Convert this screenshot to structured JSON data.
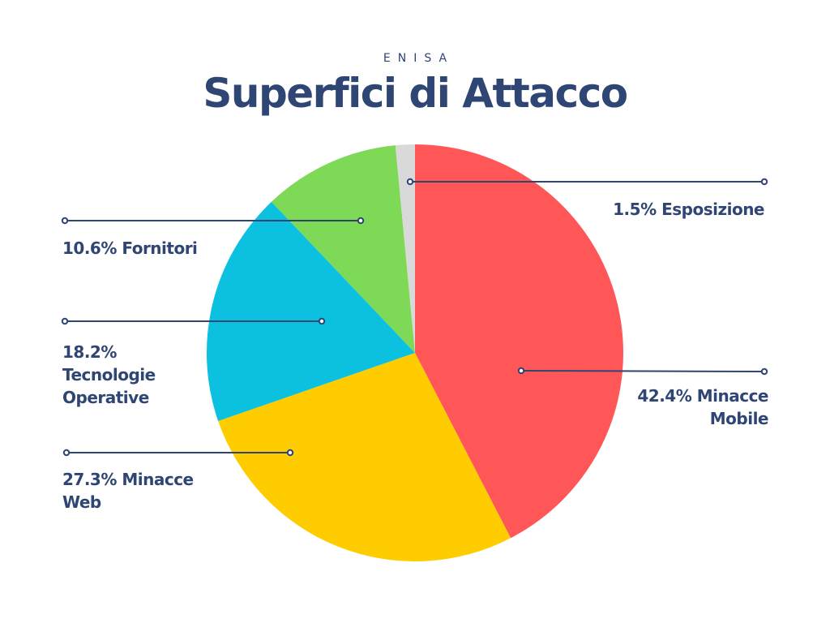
{
  "header": {
    "kicker": "ENISA",
    "title": "Superfici di Attacco"
  },
  "labels": {
    "mobile_l1": "42.4% Minacce",
    "mobile_l2": "Mobile",
    "web_l1": "27.3% Minacce",
    "web_l2": "Web",
    "ot_l1": "18.2%",
    "ot_l2": "Tecnologie",
    "ot_l3": "Operative",
    "suppliers": "10.6% Fornitori",
    "exposure": "1.5% Esposizione"
  },
  "colors": {
    "text": "#2f4574",
    "mobile": "#ff5757",
    "web": "#ffcc00",
    "ot": "#0cc0df",
    "suppliers": "#7ed957",
    "exposure": "#d9d9d9"
  },
  "chart_data": {
    "type": "pie",
    "title": "Superfici di Attacco",
    "subtitle": "ENISA",
    "start_angle": "12 o'clock, clockwise",
    "categories": [
      "Minacce Mobile",
      "Minacce Web",
      "Tecnologie Operative",
      "Fornitori",
      "Esposizione"
    ],
    "values": [
      42.4,
      27.3,
      18.2,
      10.6,
      1.5
    ],
    "unit": "%",
    "colors": [
      "#ff5757",
      "#ffcc00",
      "#0cc0df",
      "#7ed957",
      "#d9d9d9"
    ],
    "legend": "callout labels with leader lines"
  }
}
